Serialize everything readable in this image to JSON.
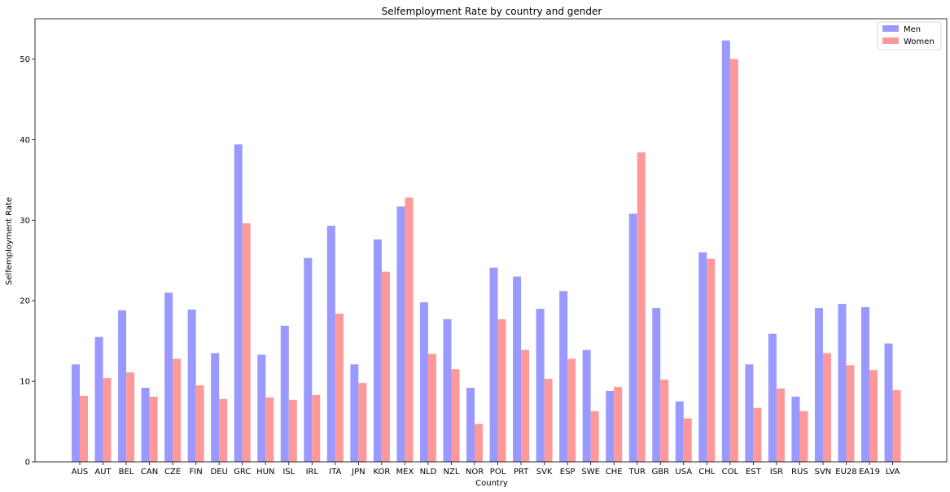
{
  "chart_data": {
    "type": "bar",
    "title": "Selfemployment Rate by country and gender",
    "xlabel": "Country",
    "ylabel": "Selfemployment Rate",
    "ylim": [
      0,
      55
    ],
    "yticks": [
      0,
      10,
      20,
      30,
      40,
      50
    ],
    "grid": false,
    "legend_position": "top-right",
    "categories": [
      "AUS",
      "AUT",
      "BEL",
      "CAN",
      "CZE",
      "FIN",
      "DEU",
      "GRC",
      "HUN",
      "ISL",
      "IRL",
      "ITA",
      "JPN",
      "KOR",
      "MEX",
      "NLD",
      "NZL",
      "NOR",
      "POL",
      "PRT",
      "SVK",
      "ESP",
      "SWE",
      "CHE",
      "TUR",
      "GBR",
      "USA",
      "CHL",
      "COL",
      "EST",
      "ISR",
      "RUS",
      "SVN",
      "EU28",
      "EA19",
      "LVA"
    ],
    "series": [
      {
        "name": "Men",
        "color": "#9999ff",
        "values": [
          12.1,
          15.5,
          18.8,
          9.2,
          21.0,
          18.9,
          13.5,
          39.4,
          13.3,
          16.9,
          25.3,
          29.3,
          12.1,
          27.6,
          31.7,
          19.8,
          17.7,
          9.2,
          24.1,
          23.0,
          19.0,
          21.2,
          13.9,
          8.8,
          30.8,
          19.1,
          7.5,
          26.0,
          52.3,
          12.1,
          15.9,
          8.1,
          19.1,
          19.6,
          19.2,
          14.7
        ]
      },
      {
        "name": "Women",
        "color": "#ff9999",
        "values": [
          8.2,
          10.4,
          11.1,
          8.1,
          12.8,
          9.5,
          7.8,
          29.6,
          8.0,
          7.7,
          8.3,
          18.4,
          9.8,
          23.6,
          32.8,
          13.4,
          11.5,
          4.7,
          17.7,
          13.9,
          10.3,
          12.8,
          6.3,
          9.3,
          38.4,
          10.2,
          5.4,
          25.2,
          50.0,
          6.7,
          9.1,
          6.3,
          13.5,
          12.0,
          11.4,
          8.9
        ]
      }
    ]
  }
}
